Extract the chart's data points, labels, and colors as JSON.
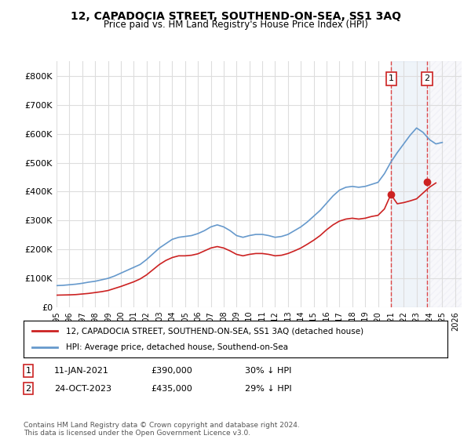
{
  "title": "12, CAPADOCIA STREET, SOUTHEND-ON-SEA, SS1 3AQ",
  "subtitle": "Price paid vs. HM Land Registry's House Price Index (HPI)",
  "ylabel": "",
  "xlim_start": 1995.0,
  "xlim_end": 2026.5,
  "ylim": [
    0,
    850000
  ],
  "yticks": [
    0,
    100000,
    200000,
    300000,
    400000,
    500000,
    600000,
    700000,
    800000
  ],
  "ytick_labels": [
    "£0",
    "£100K",
    "£200K",
    "£300K",
    "£400K",
    "£500K",
    "£600K",
    "£700K",
    "£800K"
  ],
  "hpi_color": "#6699cc",
  "price_color": "#cc2222",
  "marker1_date": 2021.03,
  "marker1_price": 390000,
  "marker2_date": 2023.81,
  "marker2_price": 435000,
  "legend_label1": "12, CAPADOCIA STREET, SOUTHEND-ON-SEA, SS1 3AQ (detached house)",
  "legend_label2": "HPI: Average price, detached house, Southend-on-Sea",
  "annotation1_label": "1",
  "annotation1_date": "11-JAN-2021",
  "annotation1_price": "£390,000",
  "annotation1_pct": "30% ↓ HPI",
  "annotation2_label": "2",
  "annotation2_date": "24-OCT-2023",
  "annotation2_price": "£435,000",
  "annotation2_pct": "29% ↓ HPI",
  "footer": "Contains HM Land Registry data © Crown copyright and database right 2024.\nThis data is licensed under the Open Government Licence v3.0.",
  "hpi_years": [
    1995,
    1995.5,
    1996,
    1996.5,
    1997,
    1997.5,
    1998,
    1998.5,
    1999,
    1999.5,
    2000,
    2000.5,
    2001,
    2001.5,
    2002,
    2002.5,
    2003,
    2003.5,
    2004,
    2004.5,
    2005,
    2005.5,
    2006,
    2006.5,
    2007,
    2007.5,
    2008,
    2008.5,
    2009,
    2009.5,
    2010,
    2010.5,
    2011,
    2011.5,
    2012,
    2012.5,
    2013,
    2013.5,
    2014,
    2014.5,
    2015,
    2015.5,
    2016,
    2016.5,
    2017,
    2017.5,
    2018,
    2018.5,
    2019,
    2019.5,
    2020,
    2020.5,
    2021,
    2021.5,
    2022,
    2022.5,
    2023,
    2023.5,
    2024,
    2024.5,
    2025
  ],
  "hpi_values": [
    75000,
    76000,
    78000,
    80000,
    83000,
    87000,
    90000,
    95000,
    100000,
    108000,
    118000,
    128000,
    138000,
    148000,
    165000,
    185000,
    205000,
    220000,
    235000,
    242000,
    245000,
    248000,
    255000,
    265000,
    278000,
    285000,
    278000,
    265000,
    248000,
    242000,
    248000,
    252000,
    252000,
    248000,
    242000,
    245000,
    252000,
    265000,
    278000,
    295000,
    315000,
    335000,
    360000,
    385000,
    405000,
    415000,
    418000,
    415000,
    418000,
    425000,
    432000,
    462000,
    502000,
    535000,
    565000,
    595000,
    620000,
    605000,
    580000,
    565000,
    570000
  ],
  "price_years": [
    1995,
    1995.5,
    1996,
    1996.5,
    1997,
    1997.5,
    1998,
    1998.5,
    1999,
    1999.5,
    2000,
    2000.5,
    2001,
    2001.5,
    2002,
    2002.5,
    2003,
    2003.5,
    2004,
    2004.5,
    2005,
    2005.5,
    2006,
    2006.5,
    2007,
    2007.5,
    2008,
    2008.5,
    2009,
    2009.5,
    2010,
    2010.5,
    2011,
    2011.5,
    2012,
    2012.5,
    2013,
    2013.5,
    2014,
    2014.5,
    2015,
    2015.5,
    2016,
    2016.5,
    2017,
    2017.5,
    2018,
    2018.5,
    2019,
    2019.5,
    2020,
    2020.5,
    2021,
    2021.5,
    2022,
    2022.5,
    2023,
    2023.5,
    2024,
    2024.5
  ],
  "price_values": [
    42000,
    42500,
    43000,
    44000,
    46000,
    48000,
    51000,
    54000,
    58000,
    65000,
    72000,
    80000,
    88000,
    98000,
    112000,
    130000,
    148000,
    162000,
    172000,
    178000,
    178000,
    180000,
    185000,
    195000,
    205000,
    210000,
    205000,
    195000,
    183000,
    178000,
    183000,
    186000,
    186000,
    183000,
    178000,
    180000,
    186000,
    195000,
    205000,
    218000,
    232000,
    248000,
    268000,
    285000,
    298000,
    305000,
    308000,
    305000,
    308000,
    314000,
    318000,
    340000,
    390000,
    358000,
    362000,
    368000,
    375000,
    395000,
    415000,
    430000
  ],
  "shade_region": [
    2021.03,
    2023.81
  ],
  "hatch_region_start": 2023.81,
  "hatch_region_end": 2026.5,
  "grid_color": "#dddddd",
  "bg_color": "#ffffff"
}
